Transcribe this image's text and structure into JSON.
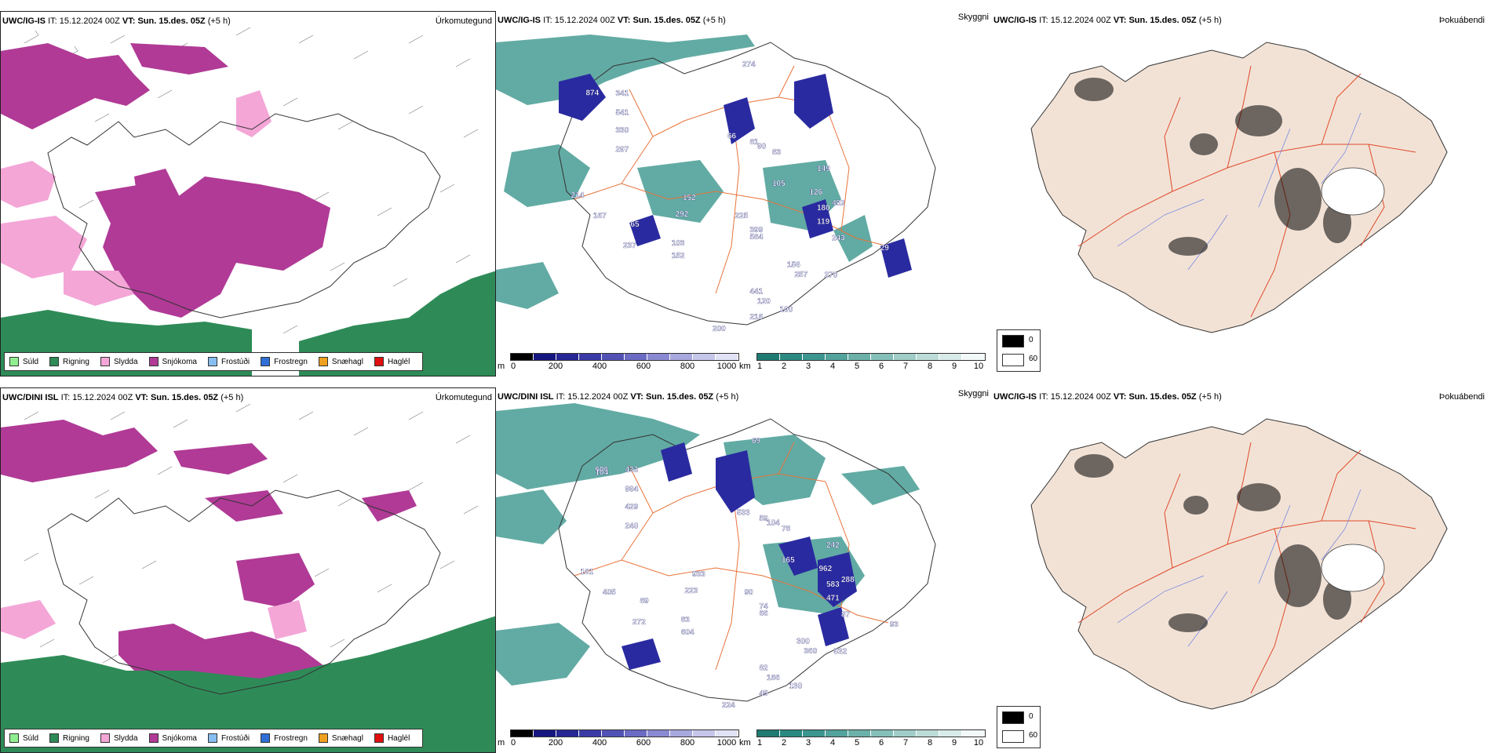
{
  "rows": [
    {
      "model": "UWC/IG-IS",
      "it_label": "IT:",
      "it_value": "15.12.2024 00Z",
      "vt_label": "VT:",
      "vt_value": "Sun. 15.des. 05Z",
      "lead": "(+5 h)",
      "precip_cloud_labels": [
        "874",
        "341",
        "541",
        "330",
        "297",
        "149",
        "105",
        "126",
        "452",
        "180",
        "119",
        "243",
        "29",
        "66",
        "81",
        "90",
        "83",
        "399",
        "584",
        "65",
        "103",
        "152",
        "237",
        "156",
        "257",
        "270",
        "441",
        "120",
        "100",
        "200",
        "216",
        "274",
        "214",
        "167",
        "152",
        "292",
        "225"
      ]
    },
    {
      "model": "UWC/DINI ISL",
      "it_label": "IT:",
      "it_value": "15.12.2024 00Z",
      "vt_label": "VT:",
      "vt_value": "Sun. 15.des. 05Z",
      "lead": "(+5 h)",
      "precip_cloud_labels": [
        "606",
        "433",
        "994",
        "429",
        "240",
        "242",
        "165",
        "962",
        "288",
        "583",
        "471",
        "87",
        "93",
        "533",
        "59",
        "104",
        "78",
        "74",
        "66",
        "89",
        "83",
        "604",
        "272",
        "300",
        "360",
        "532",
        "82",
        "166",
        "130",
        "224",
        "45",
        "69",
        "161",
        "405",
        "933",
        "223",
        "90",
        "104"
      ]
    }
  ],
  "panel_labels": {
    "precip_type": "Úrkomutegund",
    "visibility": "Skyggni",
    "fog": "Þokuábendi"
  },
  "precip_legend": [
    {
      "label": "Súld",
      "color": "#90ee90"
    },
    {
      "label": "Rigning",
      "color": "#2e8b57"
    },
    {
      "label": "Slydda",
      "color": "#f4a6d7"
    },
    {
      "label": "Snjókoma",
      "color": "#b03a96"
    },
    {
      "label": "Frostúði",
      "color": "#87bdf0"
    },
    {
      "label": "Frostregn",
      "color": "#2f6fd6"
    },
    {
      "label": "Snæhagl",
      "color": "#f0a020"
    },
    {
      "label": "Haglél",
      "color": "#e01010"
    }
  ],
  "cloudbase_bar": {
    "unit": "m",
    "ticks": [
      "0",
      "200",
      "400",
      "600",
      "800",
      "1000"
    ],
    "colors": [
      "#000000",
      "#161680",
      "#262694",
      "#3a3aa6",
      "#5252b6",
      "#6b6bc4",
      "#8a8ad2",
      "#a8a8de",
      "#c6c6ea",
      "#e2e2f6"
    ]
  },
  "visibility_bar": {
    "unit": "km",
    "ticks": [
      "1",
      "2",
      "3",
      "4",
      "5",
      "6",
      "7",
      "8",
      "9",
      "10"
    ],
    "colors": [
      "#1f7a72",
      "#2a8a82",
      "#3c968f",
      "#52a39c",
      "#6bb1aa",
      "#85bfb9",
      "#a0cdc8",
      "#bcdcd8",
      "#d8ebe8",
      "#f2f9f8"
    ]
  },
  "fog_legend": [
    {
      "label": "0",
      "color": "#000000"
    },
    {
      "label": "60",
      "color": "#ffffff"
    }
  ],
  "colors": {
    "snow": "#b03a96",
    "sleet": "#f4a6d7",
    "rain": "#2e8b57",
    "teal": "#2e8f86",
    "cloud": "#2a2aa0",
    "land": "#f2e2d6",
    "roads": "#e8733a"
  }
}
